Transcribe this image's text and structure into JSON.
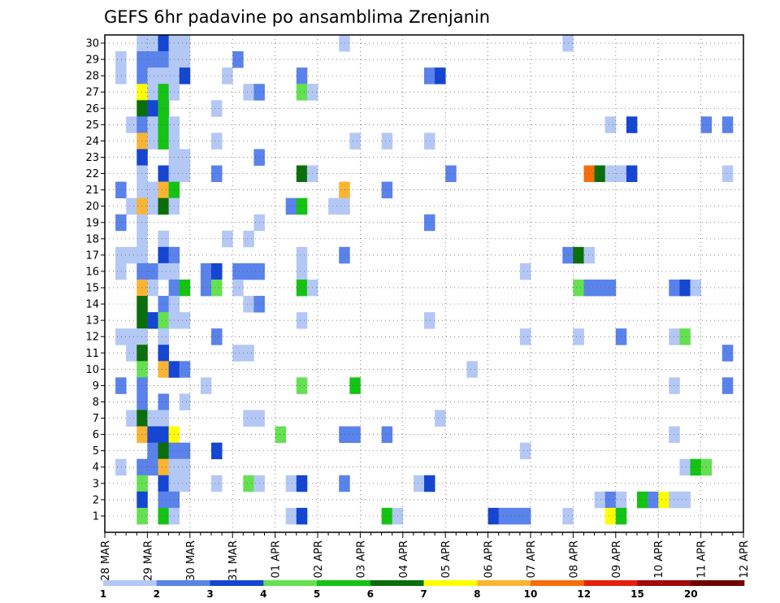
{
  "chart_data": {
    "type": "heatmap",
    "title": "GEFS 6hr padavine po ansamblima Zrenjanin",
    "x_tick_labels": [
      "28 MAR",
      "29 MAR",
      "30 MAR",
      "31 MAR",
      "01 APR",
      "02 APR",
      "03 APR",
      "04 APR",
      "05 APR",
      "06 APR",
      "07 APR",
      "08 APR",
      "09 APR",
      "10 APR",
      "11 APR",
      "12 APR"
    ],
    "y_tick_labels": [
      "1",
      "2",
      "3",
      "4",
      "5",
      "6",
      "7",
      "8",
      "9",
      "10",
      "11",
      "12",
      "13",
      "14",
      "15",
      "16",
      "17",
      "18",
      "19",
      "20",
      "21",
      "22",
      "23",
      "24",
      "25",
      "26",
      "27",
      "28",
      "29",
      "30"
    ],
    "time_steps": 60,
    "steps_per_day": 4,
    "members": 30,
    "grid": true,
    "legend_position": "bottom",
    "legend": {
      "bounds": [
        "1",
        "2",
        "3",
        "4",
        "5",
        "6",
        "7",
        "8",
        "10",
        "12",
        "15",
        "20"
      ],
      "colors": [
        "#b4c8f5",
        "#5a82eb",
        "#1446d2",
        "#64e150",
        "#14c314",
        "#0a6e0a",
        "#ffff00",
        "#fab432",
        "#f56e0a",
        "#e61e0a",
        "#a00a0a",
        "#6e0000"
      ]
    },
    "cells": [
      [
        3,
        30,
        1
      ],
      [
        4,
        30,
        1
      ],
      [
        5,
        30,
        3
      ],
      [
        6,
        30,
        1
      ],
      [
        7,
        30,
        1
      ],
      [
        22,
        30,
        1
      ],
      [
        43,
        30,
        1
      ],
      [
        1,
        29,
        1
      ],
      [
        3,
        29,
        2
      ],
      [
        4,
        29,
        2
      ],
      [
        5,
        29,
        2
      ],
      [
        6,
        29,
        1
      ],
      [
        7,
        29,
        1
      ],
      [
        12,
        29,
        2
      ],
      [
        1,
        28,
        1
      ],
      [
        3,
        28,
        2
      ],
      [
        4,
        28,
        1
      ],
      [
        5,
        28,
        1
      ],
      [
        6,
        28,
        1
      ],
      [
        7,
        28,
        3
      ],
      [
        11,
        28,
        1
      ],
      [
        18,
        28,
        2
      ],
      [
        30,
        28,
        2
      ],
      [
        31,
        28,
        3
      ],
      [
        3,
        27,
        7
      ],
      [
        4,
        27,
        1
      ],
      [
        5,
        27,
        5
      ],
      [
        6,
        27,
        1
      ],
      [
        13,
        27,
        1
      ],
      [
        14,
        27,
        2
      ],
      [
        18,
        27,
        4
      ],
      [
        19,
        27,
        1
      ],
      [
        3,
        26,
        6
      ],
      [
        4,
        26,
        3
      ],
      [
        5,
        26,
        5
      ],
      [
        10,
        26,
        1
      ],
      [
        2,
        25,
        1
      ],
      [
        3,
        25,
        2
      ],
      [
        4,
        25,
        1
      ],
      [
        5,
        25,
        5
      ],
      [
        6,
        25,
        1
      ],
      [
        47,
        25,
        1
      ],
      [
        49,
        25,
        3
      ],
      [
        56,
        25,
        2
      ],
      [
        58,
        25,
        2
      ],
      [
        3,
        24,
        8
      ],
      [
        4,
        24,
        1
      ],
      [
        5,
        24,
        5
      ],
      [
        6,
        24,
        1
      ],
      [
        10,
        24,
        1
      ],
      [
        23,
        24,
        1
      ],
      [
        26,
        24,
        1
      ],
      [
        30,
        24,
        1
      ],
      [
        3,
        23,
        3
      ],
      [
        6,
        23,
        1
      ],
      [
        7,
        23,
        1
      ],
      [
        14,
        23,
        2
      ],
      [
        3,
        22,
        1
      ],
      [
        5,
        22,
        3
      ],
      [
        6,
        22,
        1
      ],
      [
        7,
        22,
        1
      ],
      [
        10,
        22,
        2
      ],
      [
        18,
        22,
        6
      ],
      [
        19,
        22,
        1
      ],
      [
        32,
        22,
        2
      ],
      [
        45,
        22,
        9
      ],
      [
        46,
        22,
        6
      ],
      [
        47,
        22,
        1
      ],
      [
        48,
        22,
        1
      ],
      [
        49,
        22,
        3
      ],
      [
        58,
        22,
        1
      ],
      [
        1,
        21,
        2
      ],
      [
        3,
        21,
        1
      ],
      [
        4,
        21,
        1
      ],
      [
        5,
        21,
        8
      ],
      [
        6,
        21,
        5
      ],
      [
        22,
        21,
        8
      ],
      [
        26,
        21,
        2
      ],
      [
        2,
        20,
        1
      ],
      [
        3,
        20,
        8
      ],
      [
        4,
        20,
        1
      ],
      [
        5,
        20,
        6
      ],
      [
        6,
        20,
        1
      ],
      [
        17,
        20,
        2
      ],
      [
        18,
        20,
        5
      ],
      [
        21,
        20,
        1
      ],
      [
        22,
        20,
        1
      ],
      [
        1,
        19,
        2
      ],
      [
        3,
        19,
        1
      ],
      [
        14,
        19,
        1
      ],
      [
        30,
        19,
        2
      ],
      [
        3,
        18,
        1
      ],
      [
        5,
        18,
        1
      ],
      [
        11,
        18,
        1
      ],
      [
        13,
        18,
        1
      ],
      [
        1,
        17,
        1
      ],
      [
        2,
        17,
        1
      ],
      [
        3,
        17,
        1
      ],
      [
        5,
        17,
        3
      ],
      [
        6,
        17,
        2
      ],
      [
        18,
        17,
        1
      ],
      [
        22,
        17,
        2
      ],
      [
        43,
        17,
        2
      ],
      [
        44,
        17,
        6
      ],
      [
        45,
        17,
        1
      ],
      [
        1,
        16,
        1
      ],
      [
        3,
        16,
        2
      ],
      [
        4,
        16,
        2
      ],
      [
        5,
        16,
        1
      ],
      [
        6,
        16,
        1
      ],
      [
        9,
        16,
        2
      ],
      [
        10,
        16,
        3
      ],
      [
        12,
        16,
        2
      ],
      [
        13,
        16,
        2
      ],
      [
        14,
        16,
        2
      ],
      [
        18,
        16,
        1
      ],
      [
        39,
        16,
        1
      ],
      [
        3,
        15,
        8
      ],
      [
        4,
        15,
        1
      ],
      [
        6,
        15,
        2
      ],
      [
        7,
        15,
        5
      ],
      [
        9,
        15,
        2
      ],
      [
        10,
        15,
        4
      ],
      [
        12,
        15,
        1
      ],
      [
        18,
        15,
        5
      ],
      [
        19,
        15,
        1
      ],
      [
        44,
        15,
        4
      ],
      [
        45,
        15,
        2
      ],
      [
        46,
        15,
        2
      ],
      [
        47,
        15,
        2
      ],
      [
        53,
        15,
        2
      ],
      [
        54,
        15,
        3
      ],
      [
        55,
        15,
        1
      ],
      [
        3,
        14,
        6
      ],
      [
        5,
        14,
        2
      ],
      [
        6,
        14,
        1
      ],
      [
        13,
        14,
        1
      ],
      [
        14,
        14,
        2
      ],
      [
        3,
        13,
        6
      ],
      [
        4,
        13,
        3
      ],
      [
        5,
        13,
        4
      ],
      [
        6,
        13,
        1
      ],
      [
        7,
        13,
        1
      ],
      [
        18,
        13,
        1
      ],
      [
        30,
        13,
        1
      ],
      [
        1,
        12,
        1
      ],
      [
        2,
        12,
        1
      ],
      [
        3,
        12,
        1
      ],
      [
        5,
        12,
        1
      ],
      [
        10,
        12,
        2
      ],
      [
        39,
        12,
        1
      ],
      [
        44,
        12,
        1
      ],
      [
        48,
        12,
        2
      ],
      [
        53,
        12,
        1
      ],
      [
        54,
        12,
        4
      ],
      [
        2,
        11,
        1
      ],
      [
        3,
        11,
        6
      ],
      [
        5,
        11,
        3
      ],
      [
        12,
        11,
        1
      ],
      [
        13,
        11,
        1
      ],
      [
        58,
        11,
        2
      ],
      [
        3,
        10,
        4
      ],
      [
        5,
        10,
        8
      ],
      [
        6,
        10,
        3
      ],
      [
        7,
        10,
        2
      ],
      [
        34,
        10,
        1
      ],
      [
        1,
        9,
        2
      ],
      [
        3,
        9,
        2
      ],
      [
        9,
        9,
        1
      ],
      [
        18,
        9,
        4
      ],
      [
        23,
        9,
        5
      ],
      [
        53,
        9,
        1
      ],
      [
        58,
        9,
        2
      ],
      [
        3,
        8,
        2
      ],
      [
        5,
        8,
        2
      ],
      [
        7,
        8,
        1
      ],
      [
        2,
        7,
        1
      ],
      [
        3,
        7,
        6
      ],
      [
        4,
        7,
        1
      ],
      [
        5,
        7,
        1
      ],
      [
        13,
        7,
        1
      ],
      [
        14,
        7,
        1
      ],
      [
        31,
        7,
        1
      ],
      [
        3,
        6,
        8
      ],
      [
        4,
        6,
        3
      ],
      [
        5,
        6,
        3
      ],
      [
        6,
        6,
        7
      ],
      [
        16,
        6,
        4
      ],
      [
        22,
        6,
        2
      ],
      [
        23,
        6,
        2
      ],
      [
        26,
        6,
        2
      ],
      [
        53,
        6,
        1
      ],
      [
        4,
        5,
        2
      ],
      [
        5,
        5,
        6
      ],
      [
        6,
        5,
        2
      ],
      [
        7,
        5,
        2
      ],
      [
        10,
        5,
        3
      ],
      [
        39,
        5,
        1
      ],
      [
        1,
        4,
        1
      ],
      [
        3,
        4,
        2
      ],
      [
        4,
        4,
        2
      ],
      [
        5,
        4,
        8
      ],
      [
        6,
        4,
        1
      ],
      [
        7,
        4,
        1
      ],
      [
        54,
        4,
        1
      ],
      [
        55,
        4,
        5
      ],
      [
        56,
        4,
        4
      ],
      [
        3,
        3,
        4
      ],
      [
        5,
        3,
        3
      ],
      [
        6,
        3,
        1
      ],
      [
        7,
        3,
        1
      ],
      [
        10,
        3,
        1
      ],
      [
        13,
        3,
        4
      ],
      [
        14,
        3,
        1
      ],
      [
        17,
        3,
        1
      ],
      [
        18,
        3,
        3
      ],
      [
        22,
        3,
        2
      ],
      [
        29,
        3,
        1
      ],
      [
        30,
        3,
        3
      ],
      [
        3,
        2,
        3
      ],
      [
        5,
        2,
        2
      ],
      [
        6,
        2,
        2
      ],
      [
        46,
        2,
        1
      ],
      [
        47,
        2,
        2
      ],
      [
        48,
        2,
        1
      ],
      [
        50,
        2,
        5
      ],
      [
        51,
        2,
        2
      ],
      [
        52,
        2,
        7
      ],
      [
        53,
        2,
        1
      ],
      [
        54,
        2,
        1
      ],
      [
        3,
        1,
        4
      ],
      [
        5,
        1,
        5
      ],
      [
        6,
        1,
        1
      ],
      [
        17,
        1,
        1
      ],
      [
        18,
        1,
        3
      ],
      [
        26,
        1,
        5
      ],
      [
        27,
        1,
        1
      ],
      [
        36,
        1,
        3
      ],
      [
        37,
        1,
        2
      ],
      [
        38,
        1,
        2
      ],
      [
        39,
        1,
        2
      ],
      [
        43,
        1,
        1
      ],
      [
        47,
        1,
        7
      ],
      [
        48,
        1,
        5
      ]
    ]
  }
}
